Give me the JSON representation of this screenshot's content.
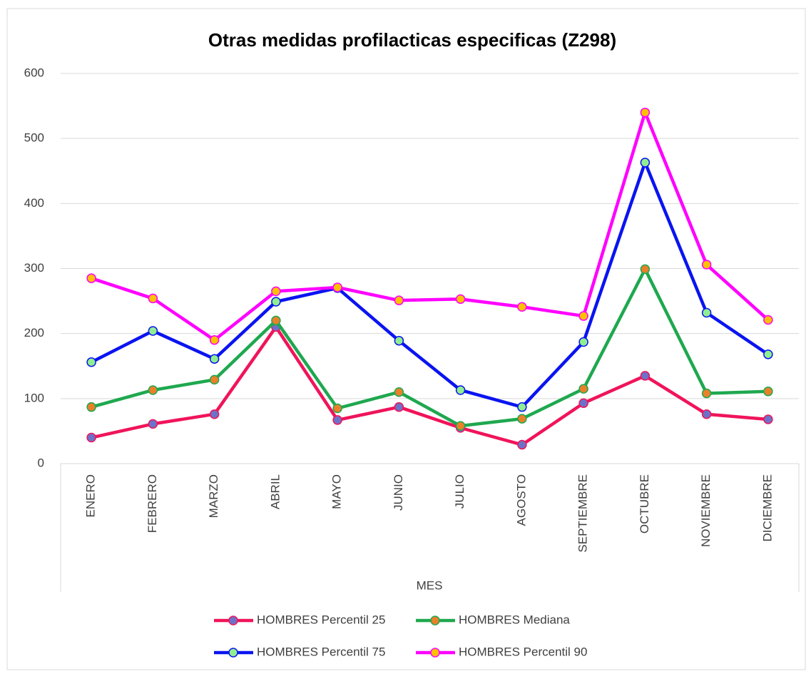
{
  "chart_data": {
    "type": "line",
    "title": "Otras medidas profilacticas especificas (Z298)",
    "x_label": "MES",
    "categories": [
      "ENERO",
      "FEBRERO",
      "MARZO",
      "ABRIL",
      "MAYO",
      "JUNIO",
      "JULIO",
      "AGOSTO",
      "SEPTIEMBRE",
      "OCTUBRE",
      "NOVIEMBRE",
      "DICIEMBRE"
    ],
    "series": [
      {
        "name": "HOMBRES Percentil 25",
        "color": "#f0145a",
        "marker_color": "#6d72c8",
        "values": [
          40,
          61,
          76,
          210,
          67,
          87,
          55,
          29,
          93,
          135,
          76,
          68
        ]
      },
      {
        "name": "HOMBRES Mediana",
        "color": "#1fa84f",
        "marker_color": "#e8812a",
        "values": [
          87,
          113,
          129,
          220,
          85,
          110,
          58,
          69,
          115,
          299,
          108,
          111
        ]
      },
      {
        "name": "HOMBRES Percentil 75",
        "color": "#0a14f0",
        "marker_color": "#90ee90",
        "values": [
          156,
          204,
          161,
          249,
          270,
          189,
          113,
          87,
          187,
          463,
          232,
          168
        ]
      },
      {
        "name": "HOMBRES Percentil 90",
        "color": "#ff00ff",
        "marker_color": "#ffc000",
        "values": [
          285,
          254,
          190,
          265,
          271,
          251,
          253,
          241,
          227,
          540,
          306,
          221
        ]
      }
    ],
    "ylim": [
      0,
      600
    ],
    "yticks": [
      0,
      100,
      200,
      300,
      400,
      500,
      600
    ],
    "grid": true,
    "legend": "bottom"
  }
}
